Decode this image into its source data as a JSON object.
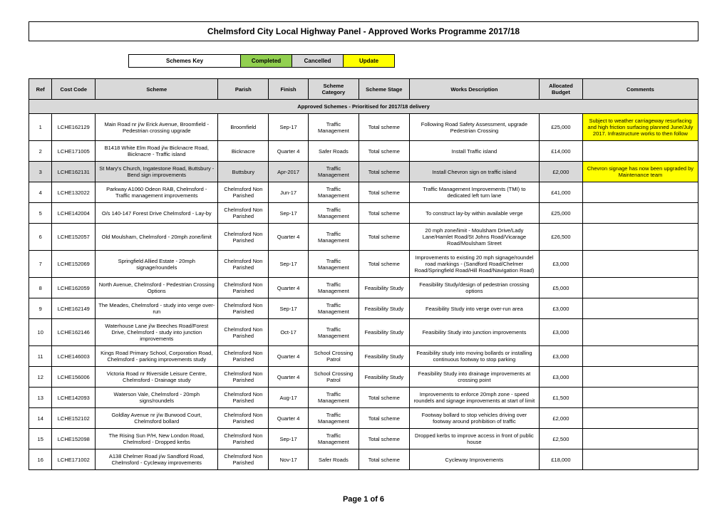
{
  "title": "Chelmsford City Local Highway Panel - Approved Works Programme 2017/18",
  "legend": {
    "key": "Schemes Key",
    "completed": "Completed",
    "cancelled": "Cancelled",
    "update": "Update"
  },
  "headers": {
    "ref": "Ref",
    "cost": "Cost Code",
    "scheme": "Scheme",
    "parish": "Parish",
    "finish": "Finish",
    "cat": "Scheme Category",
    "stage": "Scheme Stage",
    "desc": "Works Description",
    "budget": "Allocated Budget",
    "comments": "Comments"
  },
  "section": "Approved Schemes - Prioritised for 2017/18 delivery",
  "rows": [
    {
      "ref": "1",
      "cost": "LCHE162129",
      "scheme": "Main Road nr j/w Erick Avenue, Broomfield - Pedestrian crossing upgrade",
      "parish": "Broomfield",
      "finish": "Sep-17",
      "cat": "Traffic Management",
      "stage": "Total scheme",
      "desc": "Following Road Safety Assessment, upgrade Pedestrian Crossing",
      "budget": "£25,000",
      "comments": "Subject to weather carriageway resurfacing and high friction surfacing planned June/July 2017. Infrastructure works to then follow",
      "row_hl": "",
      "com_hl": "hl-yellow"
    },
    {
      "ref": "2",
      "cost": "LCHE171005",
      "scheme": "B1418 White Elm Road j/w Bicknacre Road, Bicknacre - Traffic island",
      "parish": "Bicknacre",
      "finish": "Quarter 4",
      "cat": "Safer Roads",
      "stage": "Total scheme",
      "desc": "Install Traffic island",
      "budget": "£14,000",
      "comments": "",
      "row_hl": "",
      "com_hl": ""
    },
    {
      "ref": "3",
      "cost": "LCHE162131",
      "scheme": "St Mary's Church, Ingatestone Road, Buttsbury - Bend sign improvements",
      "parish": "Buttsbury",
      "finish": "Apr-2017",
      "cat": "Traffic Management",
      "stage": "Total scheme",
      "desc": "Install Chevron sign on traffic island",
      "budget": "£2,000",
      "comments": "Chevron signage has now been upgraded by Maintenance team",
      "row_hl": "hl-grey",
      "com_hl": "hl-yellow"
    },
    {
      "ref": "4",
      "cost": "LCHE132022",
      "scheme": "Parkway A1060 Odeon RAB, Chelmsford - Traffic management improvements",
      "parish": "Chelmsford Non Parished",
      "finish": "Jun-17",
      "cat": "Traffic Management",
      "stage": "Total scheme",
      "desc": "Traffic Management Improvements (TMI) to dedicated left turn lane",
      "budget": "£41,000",
      "comments": "",
      "row_hl": "",
      "com_hl": ""
    },
    {
      "ref": "5",
      "cost": "LCHE142004",
      "scheme": "O/s 140-147 Forest Drive Chelmsford - Lay-by",
      "parish": "Chelmsford Non Parished",
      "finish": "Sep-17",
      "cat": "Traffic Management",
      "stage": "Total scheme",
      "desc": "To construct lay-by within available verge",
      "budget": "£25,000",
      "comments": "",
      "row_hl": "",
      "com_hl": ""
    },
    {
      "ref": "6",
      "cost": "LCHE152057",
      "scheme": "Old Moulsham, Chelmsford - 20mph zone/limit",
      "parish": "Chelmsford Non Parished",
      "finish": "Quarter 4",
      "cat": "Traffic Management",
      "stage": "Total scheme",
      "desc": "20 mph zone/limit - Moulsham Drive/Lady Lane/Hamlet Road/St Johns Road/Vicarage Road/Moulsham Street",
      "budget": "£26,500",
      "comments": "",
      "row_hl": "",
      "com_hl": ""
    },
    {
      "ref": "7",
      "cost": "LCHE152069",
      "scheme": "Springfield Allied Estate - 20mph signage/roundels",
      "parish": "Chelmsford Non Parished",
      "finish": "Sep-17",
      "cat": "Traffic Management",
      "stage": "Total scheme",
      "desc": "Improvements to existing 20 mph signage/roundel road markings - (Sandford Road/Chelmer Road/Springfield Road/Hill Road/Navigation Road)",
      "budget": "£3,000",
      "comments": "",
      "row_hl": "",
      "com_hl": ""
    },
    {
      "ref": "8",
      "cost": "LCHE162059",
      "scheme": "North Avenue, Chelmsford - Pedestrian Crossing Options",
      "parish": "Chelmsford Non Parished",
      "finish": "Quarter 4",
      "cat": "Traffic Management",
      "stage": "Feasibility Study",
      "desc": "Feasibility Study/design of pedestrian crossing options",
      "budget": "£5,000",
      "comments": "",
      "row_hl": "",
      "com_hl": ""
    },
    {
      "ref": "9",
      "cost": "LCHE162149",
      "scheme": "The Meades, Chelmsford - study into verge over-run",
      "parish": "Chelmsford Non Parished",
      "finish": "Sep-17",
      "cat": "Traffic Management",
      "stage": "Feasibility Study",
      "desc": "Feasibility Study into verge over-run area",
      "budget": "£3,000",
      "comments": "",
      "row_hl": "",
      "com_hl": ""
    },
    {
      "ref": "10",
      "cost": "LCHE162146",
      "scheme": "Waterhouse Lane j/w Beeches Road/Forest Drive, Chelmsford - study into junction improvements",
      "parish": "Chelmsford Non Parished",
      "finish": "Oct-17",
      "cat": "Traffic Management",
      "stage": "Feasibility Study",
      "desc": "Feasibility Study into junction improvements",
      "budget": "£3,000",
      "comments": "",
      "row_hl": "",
      "com_hl": ""
    },
    {
      "ref": "11",
      "cost": "LCHE146003",
      "scheme": "Kings Road Primary School, Corporation Road, Chelmsford - parking improvements study",
      "parish": "Chelmsford Non Parished",
      "finish": "Quarter 4",
      "cat": "School Crossing Patrol",
      "stage": "Feasibility Study",
      "desc": "Feasibility study into moving bollards or installing continuous footway to stop parking",
      "budget": "£3,000",
      "comments": "",
      "row_hl": "",
      "com_hl": ""
    },
    {
      "ref": "12",
      "cost": "LCHE156006",
      "scheme": "Victoria Road nr Riverside Leisure Centre, Chelmsford - Drainage study",
      "parish": "Chelmsford Non Parished",
      "finish": "Quarter 4",
      "cat": "School Crossing Patrol",
      "stage": "Feasibility Study",
      "desc": "Feasibility Study into drainage improvements at crossing point",
      "budget": "£3,000",
      "comments": "",
      "row_hl": "",
      "com_hl": ""
    },
    {
      "ref": "13",
      "cost": "LCHE142093",
      "scheme": "Waterson Vale, Chelmsford - 20mph signs/roundels",
      "parish": "Chelmsford Non Parished",
      "finish": "Aug-17",
      "cat": "Traffic Management",
      "stage": "Total scheme",
      "desc": "Improvements to enforce 20mph zone - speed roundels and signage improvements at start of limit",
      "budget": "£1,500",
      "comments": "",
      "row_hl": "",
      "com_hl": ""
    },
    {
      "ref": "14",
      "cost": "LCHE152102",
      "scheme": "Goldlay Avenue nr j/w Burwood Court, Chelmsford bollard",
      "parish": "Chelmsford Non Parished",
      "finish": "Quarter 4",
      "cat": "Traffic Management",
      "stage": "Total scheme",
      "desc": "Footway bollard to stop vehicles driving over footway around prohibition of traffic",
      "budget": "£2,000",
      "comments": "",
      "row_hl": "",
      "com_hl": ""
    },
    {
      "ref": "15",
      "cost": "LCHE152098",
      "scheme": "The Rising Sun P/H, New London Road, Chelmsford - Dropped kerbs",
      "parish": "Chelmsford Non Parished",
      "finish": "Sep-17",
      "cat": "Traffic Management",
      "stage": "Total scheme",
      "desc": "Dropped kerbs to improve access in front of public house",
      "budget": "£2,500",
      "comments": "",
      "row_hl": "",
      "com_hl": ""
    },
    {
      "ref": "16",
      "cost": "LCHE171002",
      "scheme": "A138 Chelmer Road j/w Sandford Road, Chelmsford - Cycleway improvements",
      "parish": "Chelmsford Non Parished",
      "finish": "Nov-17",
      "cat": "Safer Roads",
      "stage": "Total scheme",
      "desc": "Cycleway Improvements",
      "budget": "£18,000",
      "comments": "",
      "row_hl": "",
      "com_hl": ""
    }
  ],
  "footer": "Page 1 of 6"
}
